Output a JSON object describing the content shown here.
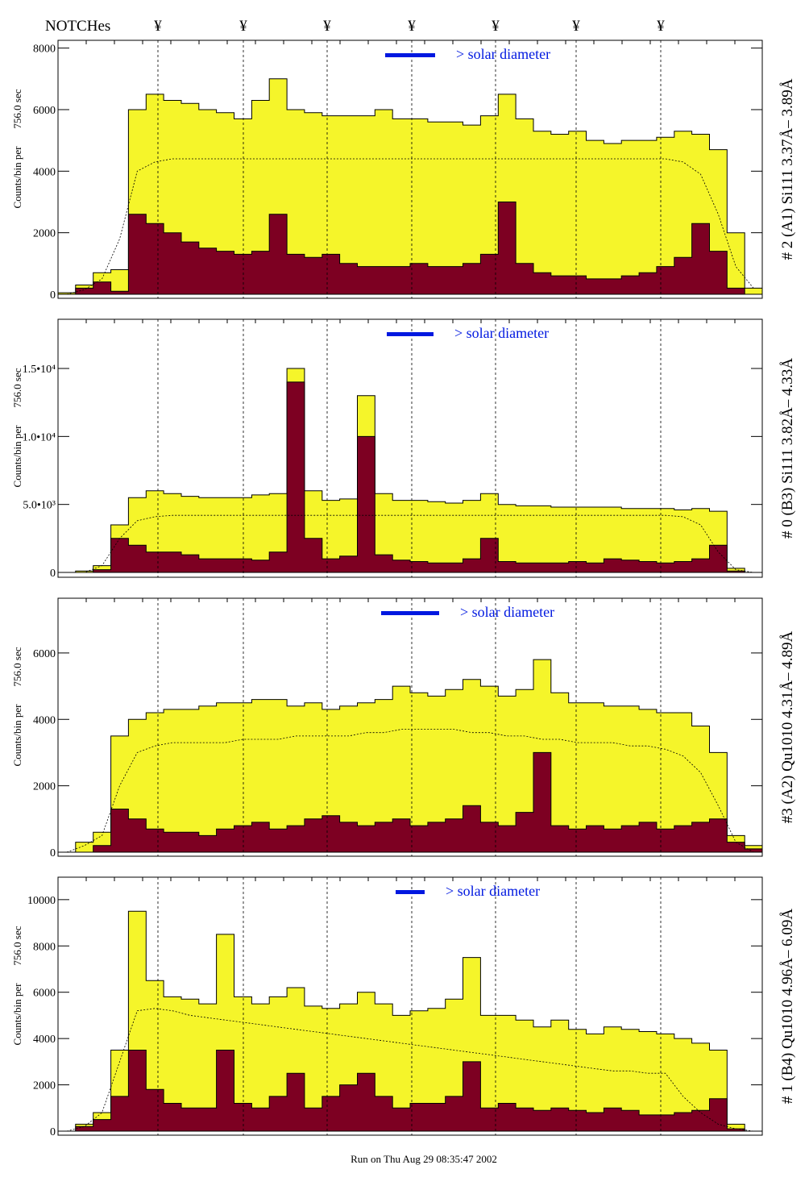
{
  "header": {
    "notches_label": "NOTCHes",
    "notch_symbol": "¥"
  },
  "footer": {
    "run_text": "Run on Thu Aug 29 08:35:47 2002"
  },
  "colors": {
    "yellow": "#f5f52a",
    "maroon": "#7d0022",
    "blue": "#0018e0"
  },
  "chart_data": [
    {
      "type": "bar",
      "title": "# 2 (A1) Si111  3.37Å– 3.89Å",
      "ylabel_main": "Counts/bin per",
      "ylabel_time": "756.0 sec",
      "legend": "> solar diameter",
      "ylim": [
        0,
        8200
      ],
      "yticks": [
        0,
        2000,
        4000,
        6000,
        8000
      ],
      "ytick_labels": [
        "0",
        "2000",
        "4000",
        "6000",
        "8000"
      ],
      "series": [
        {
          "name": "total",
          "values": [
            50,
            300,
            700,
            800,
            6000,
            6500,
            6300,
            6200,
            6000,
            5900,
            5700,
            6300,
            7000,
            6000,
            5900,
            5800,
            5800,
            5800,
            6000,
            5700,
            5700,
            5600,
            5600,
            5500,
            5800,
            6500,
            5700,
            5300,
            5200,
            5300,
            5000,
            4900,
            5000,
            5000,
            5100,
            5300,
            5200,
            4700,
            2000,
            200
          ]
        },
        {
          "name": "background",
          "values": [
            0,
            200,
            400,
            100,
            2600,
            2300,
            2000,
            1700,
            1500,
            1400,
            1300,
            1400,
            2600,
            1300,
            1200,
            1300,
            1000,
            900,
            900,
            900,
            1000,
            900,
            900,
            1000,
            1300,
            3000,
            1000,
            700,
            600,
            600,
            500,
            500,
            600,
            700,
            900,
            1200,
            2300,
            1400,
            200,
            0
          ]
        },
        {
          "name": "expected",
          "values": [
            0,
            150,
            500,
            1800,
            4000,
            4300,
            4400,
            4400,
            4400,
            4400,
            4400,
            4400,
            4400,
            4400,
            4400,
            4400,
            4400,
            4400,
            4400,
            4400,
            4400,
            4400,
            4400,
            4400,
            4400,
            4400,
            4400,
            4400,
            4400,
            4400,
            4400,
            4400,
            4400,
            4400,
            4400,
            4300,
            3900,
            2600,
            900,
            200
          ]
        }
      ]
    },
    {
      "type": "bar",
      "title": "# 0 (B3) Si111  3.82Å– 4.33Å",
      "ylabel_main": "Counts/bin per",
      "ylabel_time": "756.0 sec",
      "legend": "> solar diameter",
      "ylim": [
        0,
        18500
      ],
      "yticks": [
        0,
        5000,
        10000,
        15000
      ],
      "ytick_labels": [
        "0",
        "5.0•10³",
        "1.0•10⁴",
        "1.5•10⁴"
      ],
      "series": [
        {
          "name": "total",
          "values": [
            0,
            100,
            500,
            3500,
            5500,
            6000,
            5800,
            5600,
            5500,
            5500,
            5500,
            5700,
            5800,
            15000,
            6000,
            5300,
            5400,
            13000,
            5800,
            5300,
            5300,
            5200,
            5100,
            5300,
            5800,
            5000,
            4900,
            4900,
            4800,
            4800,
            4800,
            4800,
            4700,
            4700,
            4700,
            4600,
            4700,
            4500,
            300,
            0
          ]
        },
        {
          "name": "background",
          "values": [
            0,
            0,
            200,
            2500,
            2000,
            1500,
            1500,
            1300,
            1000,
            1000,
            1000,
            900,
            1500,
            14000,
            2500,
            1000,
            1200,
            10000,
            1300,
            900,
            800,
            700,
            700,
            1000,
            2500,
            800,
            700,
            700,
            700,
            800,
            700,
            1000,
            900,
            800,
            700,
            800,
            1000,
            2000,
            100,
            0
          ]
        },
        {
          "name": "expected",
          "values": [
            0,
            0,
            500,
            2500,
            3800,
            4100,
            4200,
            4200,
            4200,
            4200,
            4200,
            4200,
            4200,
            4200,
            4200,
            4200,
            4200,
            4200,
            4200,
            4200,
            4200,
            4200,
            4200,
            4200,
            4200,
            4200,
            4200,
            4200,
            4200,
            4200,
            4200,
            4200,
            4200,
            4200,
            4200,
            4100,
            3500,
            1500,
            200,
            0
          ]
        }
      ]
    },
    {
      "type": "bar",
      "title": "#3 (A2) Qu1010  4.31Å– 4.89Å",
      "ylabel_main": "Counts/bin per",
      "ylabel_time": "756.0 sec",
      "legend": "> solar diameter",
      "ylim": [
        0,
        7600
      ],
      "yticks": [
        0,
        2000,
        4000,
        6000
      ],
      "ytick_labels": [
        "0",
        "2000",
        "4000",
        "6000"
      ],
      "series": [
        {
          "name": "total",
          "values": [
            0,
            300,
            600,
            3500,
            4000,
            4200,
            4300,
            4300,
            4400,
            4500,
            4500,
            4600,
            4600,
            4400,
            4500,
            4300,
            4400,
            4500,
            4600,
            5000,
            4800,
            4700,
            4900,
            5200,
            5000,
            4700,
            4900,
            5800,
            4800,
            4500,
            4500,
            4400,
            4400,
            4300,
            4200,
            4200,
            3800,
            3000,
            500,
            200
          ]
        },
        {
          "name": "background",
          "values": [
            0,
            0,
            200,
            1300,
            1000,
            700,
            600,
            600,
            500,
            700,
            800,
            900,
            700,
            800,
            1000,
            1100,
            900,
            800,
            900,
            1000,
            800,
            900,
            1000,
            1400,
            900,
            800,
            1200,
            3000,
            800,
            700,
            800,
            700,
            800,
            900,
            700,
            800,
            900,
            1000,
            300,
            100
          ]
        },
        {
          "name": "expected",
          "values": [
            0,
            200,
            500,
            2000,
            3000,
            3200,
            3300,
            3300,
            3300,
            3300,
            3400,
            3400,
            3400,
            3500,
            3500,
            3500,
            3500,
            3600,
            3600,
            3700,
            3700,
            3700,
            3700,
            3600,
            3600,
            3500,
            3500,
            3400,
            3400,
            3300,
            3300,
            3300,
            3200,
            3200,
            3100,
            2900,
            2400,
            1400,
            300,
            0
          ]
        }
      ]
    },
    {
      "type": "bar",
      "title": "# 1 (B4) Qu1010 4.96Å– 6.09Å",
      "ylabel_main": "Counts/bin per",
      "ylabel_time": "756.0 sec",
      "legend": "> solar diameter",
      "ylim": [
        0,
        10900
      ],
      "yticks": [
        0,
        2000,
        4000,
        6000,
        8000,
        10000
      ],
      "ytick_labels": [
        "0",
        "2000",
        "4000",
        "6000",
        "8000",
        "10000"
      ],
      "series": [
        {
          "name": "total",
          "values": [
            0,
            300,
            800,
            3500,
            9500,
            6500,
            5800,
            5700,
            5500,
            8500,
            5800,
            5500,
            5800,
            6200,
            5400,
            5300,
            5500,
            6000,
            5500,
            5000,
            5200,
            5300,
            5700,
            7500,
            5000,
            5000,
            4800,
            4500,
            4800,
            4400,
            4200,
            4500,
            4400,
            4300,
            4200,
            4000,
            3800,
            3500,
            300,
            0
          ]
        },
        {
          "name": "background",
          "values": [
            0,
            200,
            500,
            1500,
            3500,
            1800,
            1200,
            1000,
            1000,
            3500,
            1200,
            1000,
            1500,
            2500,
            1000,
            1500,
            2000,
            2500,
            1500,
            1000,
            1200,
            1200,
            1500,
            3000,
            1000,
            1200,
            1000,
            900,
            1000,
            900,
            800,
            1000,
            900,
            700,
            700,
            800,
            900,
            1400,
            100,
            0
          ]
        },
        {
          "name": "expected",
          "values": [
            0,
            200,
            800,
            3000,
            5200,
            5300,
            5200,
            5000,
            4900,
            4800,
            4700,
            4600,
            4500,
            4400,
            4300,
            4200,
            4100,
            4000,
            3900,
            3800,
            3700,
            3600,
            3500,
            3400,
            3300,
            3200,
            3100,
            3000,
            2900,
            2800,
            2700,
            2600,
            2600,
            2500,
            2500,
            1500,
            800,
            300,
            100,
            0
          ]
        }
      ]
    }
  ]
}
